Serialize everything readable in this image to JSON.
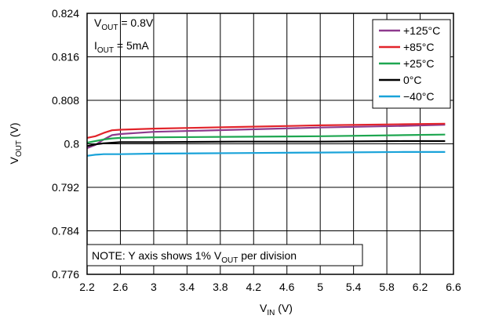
{
  "chart_data": {
    "type": "line",
    "xlabel": {
      "main": "V",
      "sub": "IN",
      "unit": " (V)"
    },
    "ylabel": {
      "main": "V",
      "sub": "OUT",
      "unit": " (V)"
    },
    "xlim": [
      2.2,
      6.6
    ],
    "ylim": [
      0.776,
      0.824
    ],
    "xticks": [
      "2.2",
      "2.6",
      "3",
      "3.4",
      "3.8",
      "4.2",
      "4.6",
      "5",
      "5.4",
      "5.8",
      "6.2",
      "6.6"
    ],
    "xtick_values": [
      2.2,
      2.6,
      3.0,
      3.4,
      3.8,
      4.2,
      4.6,
      5.0,
      5.4,
      5.8,
      6.2,
      6.6
    ],
    "yticks": [
      "0.824",
      "0.816",
      "0.808",
      "0.8",
      "0.792",
      "0.784",
      "0.776"
    ],
    "ytick_values": [
      0.824,
      0.816,
      0.808,
      0.8,
      0.792,
      0.784,
      0.776
    ],
    "grid": true,
    "legend_position": "top-right",
    "annotations": {
      "vout_main": "V",
      "vout_sub": "OUT",
      "vout_rest": " = 0.8V",
      "iout_main": "I",
      "iout_sub": "OUT",
      "iout_rest": " = 5mA",
      "note_main": "NOTE: Y axis shows 1% V",
      "note_sub": "OUT",
      "note_rest": " per division"
    },
    "series": [
      {
        "name": "+125°C",
        "color": "#8e3a8e",
        "x": [
          2.2,
          2.3,
          2.4,
          2.5,
          2.6,
          3.0,
          4.0,
          5.0,
          6.0,
          6.5
        ],
        "y": [
          0.7992,
          0.7998,
          0.8008,
          0.8016,
          0.8018,
          0.8022,
          0.8026,
          0.803,
          0.8033,
          0.8035
        ]
      },
      {
        "name": "+85°C",
        "color": "#e2242b",
        "x": [
          2.2,
          2.3,
          2.4,
          2.5,
          2.6,
          3.0,
          4.0,
          5.0,
          6.0,
          6.5
        ],
        "y": [
          0.8011,
          0.8014,
          0.802,
          0.8025,
          0.8026,
          0.8028,
          0.8031,
          0.8034,
          0.8036,
          0.8037
        ]
      },
      {
        "name": "+25°C",
        "color": "#1ea650",
        "x": [
          2.2,
          2.3,
          2.4,
          2.5,
          2.6,
          3.0,
          4.0,
          5.0,
          6.0,
          6.5
        ],
        "y": [
          0.8002,
          0.8005,
          0.8008,
          0.801,
          0.8011,
          0.8012,
          0.8013,
          0.8014,
          0.8016,
          0.8017
        ]
      },
      {
        "name": "0°C",
        "color": "#000000",
        "x": [
          2.2,
          2.3,
          2.4,
          2.5,
          2.6,
          3.0,
          4.0,
          5.0,
          6.0,
          6.5
        ],
        "y": [
          0.7996,
          0.7999,
          0.8001,
          0.8002,
          0.8003,
          0.8003,
          0.8004,
          0.8004,
          0.8005,
          0.8005
        ]
      },
      {
        "name": "−40°C",
        "color": "#1aa3d9",
        "x": [
          2.2,
          2.3,
          2.4,
          2.5,
          2.6,
          3.0,
          4.0,
          5.0,
          6.0,
          6.5
        ],
        "y": [
          0.7978,
          0.798,
          0.7981,
          0.7981,
          0.7981,
          0.7982,
          0.7983,
          0.7984,
          0.7985,
          0.7985
        ]
      }
    ]
  }
}
